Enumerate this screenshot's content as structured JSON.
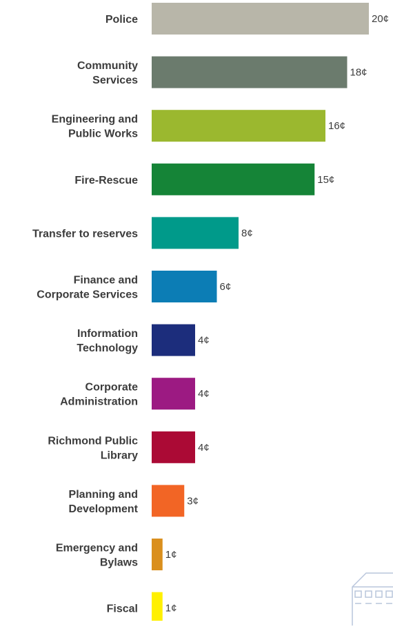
{
  "chart_data": {
    "type": "bar",
    "orientation": "horizontal",
    "unit": "¢",
    "categories": [
      [
        "Police"
      ],
      [
        "Community",
        "Services"
      ],
      [
        "Engineering and",
        "Public Works"
      ],
      [
        "Fire-Rescue"
      ],
      [
        "Transfer to reserves"
      ],
      [
        "Finance and",
        "Corporate Services"
      ],
      [
        "Information",
        "Technology"
      ],
      [
        "Corporate",
        "Administration"
      ],
      [
        "Richmond Public",
        "Library"
      ],
      [
        "Planning and",
        "Development"
      ],
      [
        "Emergency and",
        "Bylaws"
      ],
      [
        "Fiscal"
      ]
    ],
    "values": [
      20,
      18,
      16,
      15,
      8,
      6,
      4,
      4,
      4,
      3,
      1,
      1
    ],
    "value_labels": [
      "20¢",
      "18¢",
      "16¢",
      "15¢",
      "8¢",
      "6¢",
      "4¢",
      "4¢",
      "4¢",
      "3¢",
      "1¢",
      "1¢"
    ],
    "colors": [
      "#b8b6a9",
      "#6b7b6d",
      "#9bb82f",
      "#158437",
      "#009a8a",
      "#0c7db5",
      "#1c2d7c",
      "#9c1a82",
      "#ab0a35",
      "#f26525",
      "#da8f1d",
      "#fff000"
    ],
    "xlim": [
      0,
      20
    ],
    "grid": false,
    "legend": "none"
  },
  "decoration": {
    "icon": "building-outline-icon",
    "color": "#b9c6dc"
  }
}
